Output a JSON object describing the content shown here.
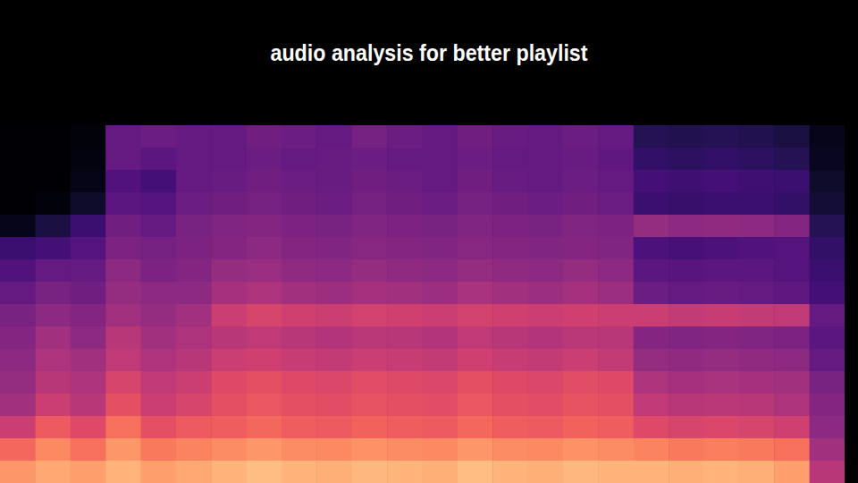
{
  "chart_data": {
    "type": "heatmap",
    "title": "audio analysis for better playlist",
    "color": "magma",
    "tick_labels": false,
    "color_range": [
      0,
      1
    ],
    "cells": [
      [
        0,
        0,
        0.02,
        0.3,
        0.32,
        0.3,
        0.3,
        0.33,
        0.32,
        0.3,
        0.34,
        0.32,
        0.3,
        0.33,
        0.31,
        0.3,
        0.32,
        0.3,
        0.15,
        0.14,
        0.15,
        0.14,
        0.12,
        0.05
      ],
      [
        0,
        0,
        0.03,
        0.3,
        0.28,
        0.3,
        0.3,
        0.32,
        0.3,
        0.31,
        0.32,
        0.3,
        0.3,
        0.32,
        0.3,
        0.3,
        0.31,
        0.29,
        0.18,
        0.17,
        0.18,
        0.17,
        0.15,
        0.06
      ],
      [
        0,
        0,
        0.04,
        0.25,
        0.22,
        0.3,
        0.31,
        0.33,
        0.32,
        0.31,
        0.33,
        0.32,
        0.3,
        0.33,
        0.31,
        0.3,
        0.32,
        0.3,
        0.22,
        0.21,
        0.22,
        0.21,
        0.2,
        0.08
      ],
      [
        0,
        0.02,
        0.08,
        0.28,
        0.26,
        0.32,
        0.33,
        0.34,
        0.33,
        0.32,
        0.34,
        0.33,
        0.32,
        0.34,
        0.33,
        0.32,
        0.33,
        0.32,
        0.2,
        0.19,
        0.2,
        0.2,
        0.18,
        0.1
      ],
      [
        0.05,
        0.12,
        0.2,
        0.33,
        0.3,
        0.35,
        0.37,
        0.38,
        0.36,
        0.35,
        0.37,
        0.36,
        0.35,
        0.37,
        0.36,
        0.35,
        0.37,
        0.36,
        0.42,
        0.4,
        0.41,
        0.4,
        0.38,
        0.15
      ],
      [
        0.2,
        0.22,
        0.26,
        0.36,
        0.34,
        0.36,
        0.38,
        0.4,
        0.38,
        0.37,
        0.39,
        0.38,
        0.37,
        0.39,
        0.38,
        0.37,
        0.38,
        0.37,
        0.24,
        0.23,
        0.24,
        0.25,
        0.26,
        0.18
      ],
      [
        0.25,
        0.3,
        0.3,
        0.4,
        0.36,
        0.38,
        0.42,
        0.43,
        0.41,
        0.4,
        0.42,
        0.41,
        0.4,
        0.42,
        0.41,
        0.4,
        0.42,
        0.4,
        0.28,
        0.27,
        0.28,
        0.28,
        0.26,
        0.2
      ],
      [
        0.3,
        0.35,
        0.33,
        0.42,
        0.4,
        0.4,
        0.46,
        0.48,
        0.45,
        0.44,
        0.46,
        0.45,
        0.44,
        0.47,
        0.45,
        0.44,
        0.46,
        0.44,
        0.32,
        0.3,
        0.31,
        0.3,
        0.29,
        0.22
      ],
      [
        0.35,
        0.4,
        0.38,
        0.45,
        0.42,
        0.45,
        0.55,
        0.58,
        0.56,
        0.55,
        0.57,
        0.56,
        0.55,
        0.57,
        0.56,
        0.55,
        0.56,
        0.55,
        0.55,
        0.53,
        0.54,
        0.53,
        0.52,
        0.3
      ],
      [
        0.38,
        0.45,
        0.4,
        0.5,
        0.45,
        0.48,
        0.5,
        0.52,
        0.5,
        0.49,
        0.51,
        0.5,
        0.49,
        0.52,
        0.5,
        0.49,
        0.51,
        0.5,
        0.38,
        0.37,
        0.38,
        0.37,
        0.36,
        0.28
      ],
      [
        0.4,
        0.48,
        0.45,
        0.52,
        0.48,
        0.5,
        0.55,
        0.56,
        0.54,
        0.53,
        0.55,
        0.54,
        0.53,
        0.56,
        0.54,
        0.53,
        0.55,
        0.53,
        0.42,
        0.41,
        0.42,
        0.41,
        0.4,
        0.3
      ],
      [
        0.42,
        0.5,
        0.48,
        0.58,
        0.52,
        0.55,
        0.6,
        0.62,
        0.6,
        0.59,
        0.61,
        0.6,
        0.59,
        0.62,
        0.6,
        0.59,
        0.61,
        0.6,
        0.48,
        0.46,
        0.47,
        0.46,
        0.45,
        0.35
      ],
      [
        0.45,
        0.55,
        0.5,
        0.62,
        0.55,
        0.58,
        0.62,
        0.64,
        0.62,
        0.61,
        0.63,
        0.62,
        0.61,
        0.64,
        0.62,
        0.61,
        0.63,
        0.62,
        0.52,
        0.5,
        0.51,
        0.5,
        0.48,
        0.38
      ],
      [
        0.55,
        0.65,
        0.6,
        0.7,
        0.62,
        0.65,
        0.66,
        0.68,
        0.66,
        0.65,
        0.67,
        0.66,
        0.65,
        0.68,
        0.66,
        0.65,
        0.67,
        0.66,
        0.6,
        0.58,
        0.59,
        0.58,
        0.56,
        0.4
      ],
      [
        0.68,
        0.75,
        0.7,
        0.78,
        0.72,
        0.74,
        0.76,
        0.78,
        0.76,
        0.75,
        0.77,
        0.76,
        0.75,
        0.78,
        0.76,
        0.75,
        0.77,
        0.76,
        0.74,
        0.72,
        0.73,
        0.72,
        0.7,
        0.45
      ],
      [
        0.78,
        0.82,
        0.8,
        0.84,
        0.8,
        0.82,
        0.84,
        0.86,
        0.84,
        0.83,
        0.85,
        0.84,
        0.83,
        0.86,
        0.84,
        0.83,
        0.85,
        0.84,
        0.84,
        0.83,
        0.84,
        0.83,
        0.8,
        0.5
      ]
    ]
  }
}
